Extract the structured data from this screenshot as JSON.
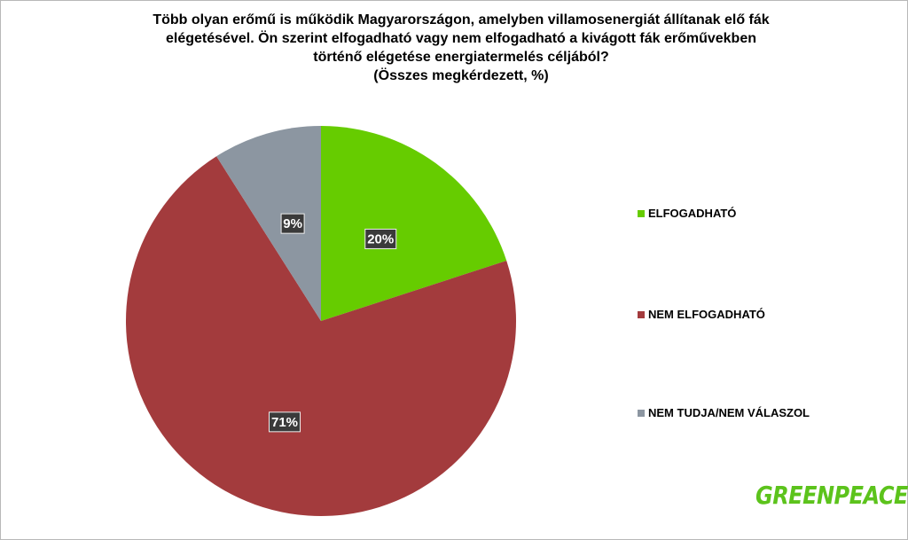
{
  "chart_data": {
    "type": "pie",
    "title_lines": [
      "Több olyan erőmű is működik Magyarországon, amelyben villamosenergiát állítanak elő fák",
      "elégetésével.  Ön szerint elfogadható vagy nem elfogadható a kivágott fák erőművekben",
      "történő elégetése energiatermelés céljából?",
      "(Összes megkérdezett, %)"
    ],
    "categories": [
      "ELFOGADHATÓ",
      "NEM ELFOGADHATÓ",
      "NEM TUDJA/NEM VÁLASZOL"
    ],
    "values": [
      20,
      71,
      9
    ],
    "data_labels": [
      "20%",
      "71%",
      "9%"
    ],
    "colors": [
      "#66cc00",
      "#a33b3d",
      "#8c96a1"
    ],
    "start": "top, clockwise",
    "legend_placement": "right"
  },
  "logo": {
    "text": "GREENPEACE",
    "color": "#5cc31c"
  }
}
